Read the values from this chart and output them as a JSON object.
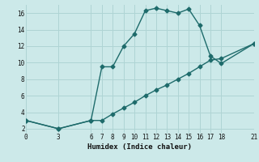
{
  "xlabel": "Humidex (Indice chaleur)",
  "background_color": "#cce9e9",
  "grid_color": "#afd4d4",
  "line_color": "#1e6b6b",
  "curve1_x": [
    0,
    3,
    6,
    7,
    8,
    9,
    10,
    11,
    12,
    13,
    14,
    15,
    16,
    17,
    18,
    21
  ],
  "curve1_y": [
    3,
    2,
    3,
    9.5,
    9.5,
    12,
    13.5,
    16.3,
    16.6,
    16.3,
    16.0,
    16.5,
    14.5,
    10.8,
    9.9,
    12.3
  ],
  "curve2_x": [
    0,
    3,
    6,
    7,
    8,
    9,
    10,
    11,
    12,
    13,
    14,
    15,
    16,
    17,
    18,
    21
  ],
  "curve2_y": [
    3,
    2,
    3,
    3,
    3.8,
    4.5,
    5.2,
    6.0,
    6.7,
    7.3,
    8.0,
    8.7,
    9.5,
    10.3,
    10.5,
    12.3
  ],
  "xlim": [
    0,
    21
  ],
  "ylim": [
    1.5,
    17
  ],
  "xticks": [
    0,
    3,
    6,
    7,
    8,
    9,
    10,
    11,
    12,
    13,
    14,
    15,
    16,
    17,
    18,
    21
  ],
  "yticks": [
    2,
    4,
    6,
    8,
    10,
    12,
    14,
    16
  ],
  "marker": "D",
  "markersize": 2.5,
  "linewidth": 1.0,
  "tick_fontsize": 5.5,
  "xlabel_fontsize": 6.5
}
